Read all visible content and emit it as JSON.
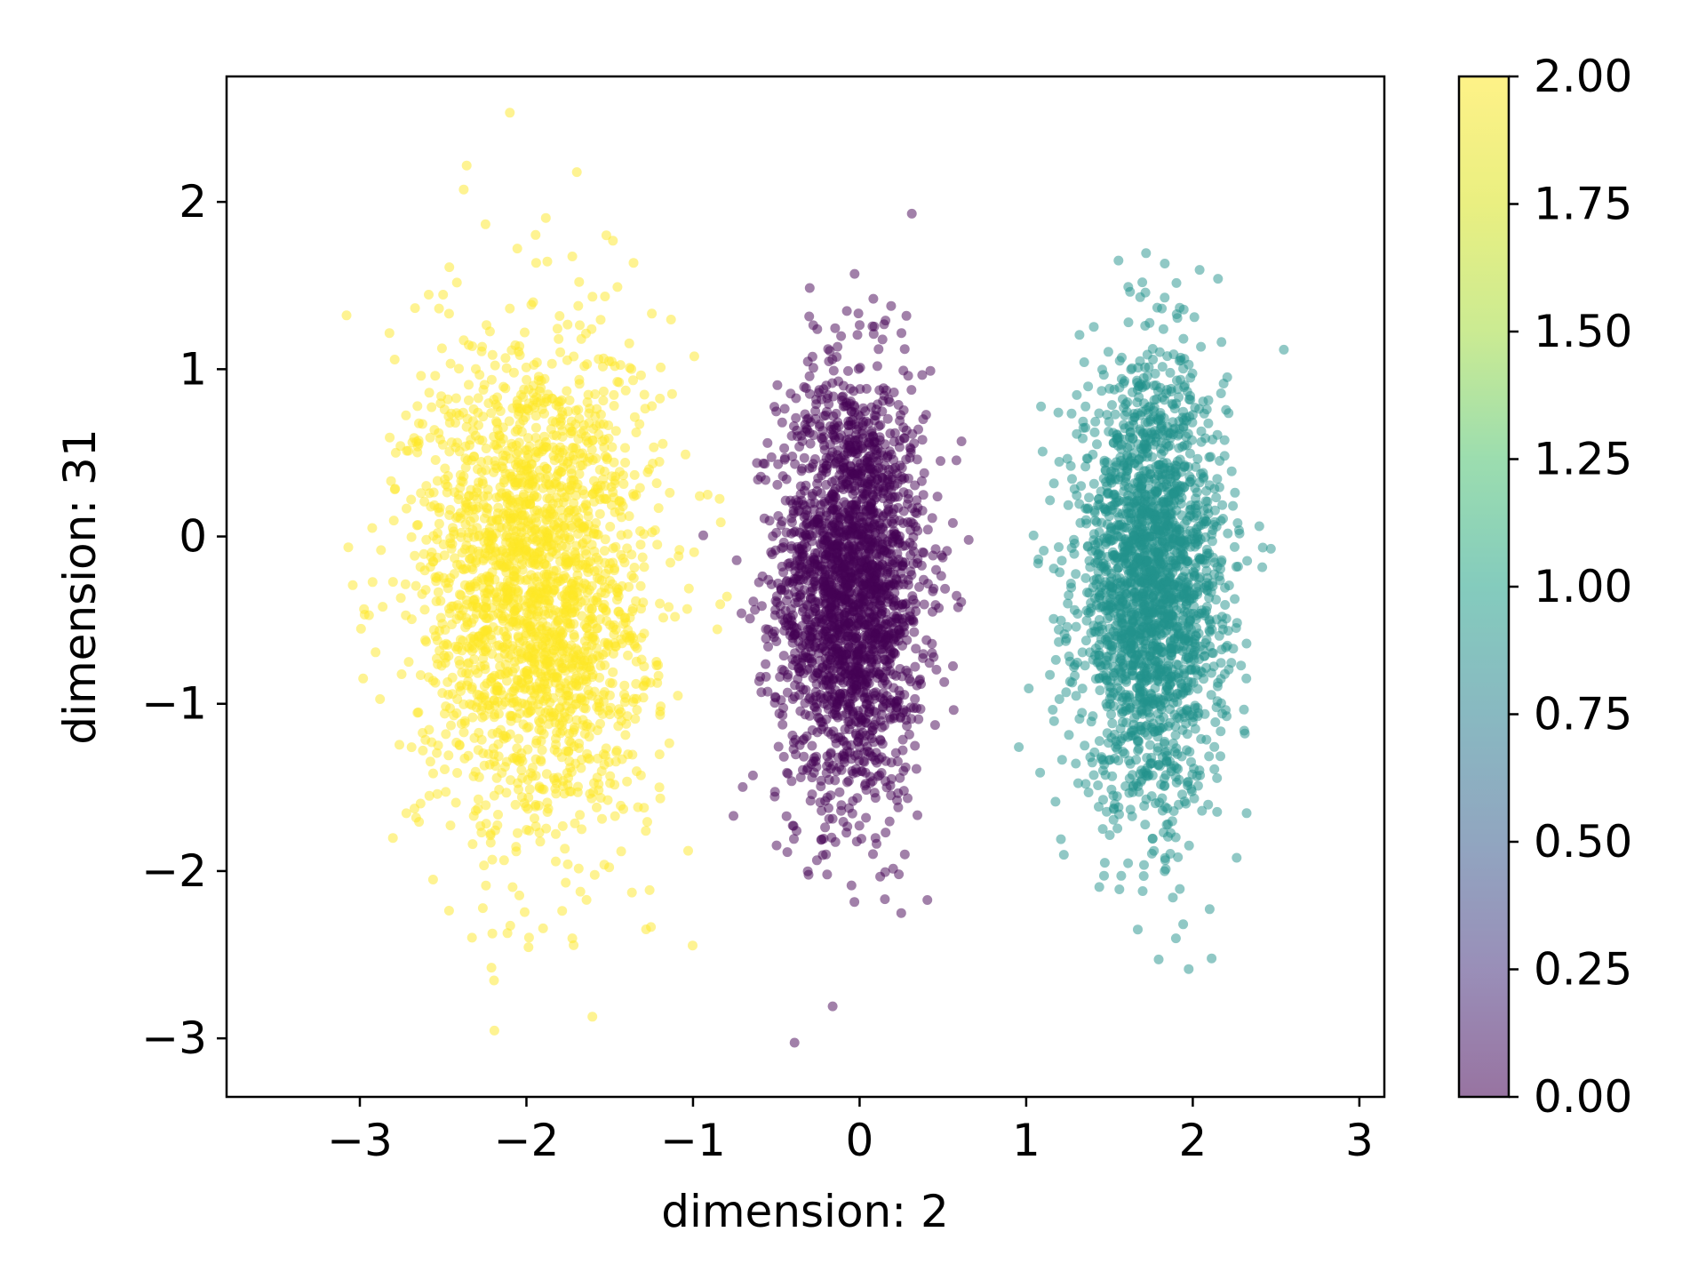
{
  "chart_data": {
    "type": "scatter",
    "title": "",
    "xlabel": "dimension: 2",
    "ylabel": "dimension: 31",
    "xlim": [
      -3.8,
      3.15
    ],
    "ylim": [
      -3.35,
      2.75
    ],
    "xticks": [
      -3,
      -2,
      -1,
      0,
      1,
      2,
      3
    ],
    "xtick_labels": [
      "−3",
      "−2",
      "−1",
      "0",
      "1",
      "2",
      "3"
    ],
    "yticks": [
      -3,
      -2,
      -1,
      0,
      1,
      2
    ],
    "ytick_labels": [
      "−3",
      "−2",
      "−1",
      "0",
      "1",
      "2"
    ],
    "grid": false,
    "legend": "none",
    "series": [
      {
        "class_value": 0,
        "color": "#440154",
        "center": [
          -0.05,
          -0.3
        ],
        "std": [
          0.22,
          0.65
        ]
      },
      {
        "class_value": 1,
        "color": "#21918c",
        "center": [
          1.75,
          -0.3
        ],
        "std": [
          0.22,
          0.65
        ]
      },
      {
        "class_value": 2,
        "color": "#fde725",
        "center": [
          -1.95,
          -0.3
        ],
        "std": [
          0.35,
          0.75
        ]
      }
    ],
    "colorbar": {
      "colormap": "viridis",
      "range": [
        0.0,
        2.0
      ],
      "ticks": [
        0.0,
        0.25,
        0.5,
        0.75,
        1.0,
        1.25,
        1.5,
        1.75,
        2.0
      ],
      "tick_labels": [
        "0.00",
        "0.25",
        "0.50",
        "0.75",
        "1.00",
        "1.25",
        "1.50",
        "1.75",
        "2.00"
      ]
    }
  }
}
